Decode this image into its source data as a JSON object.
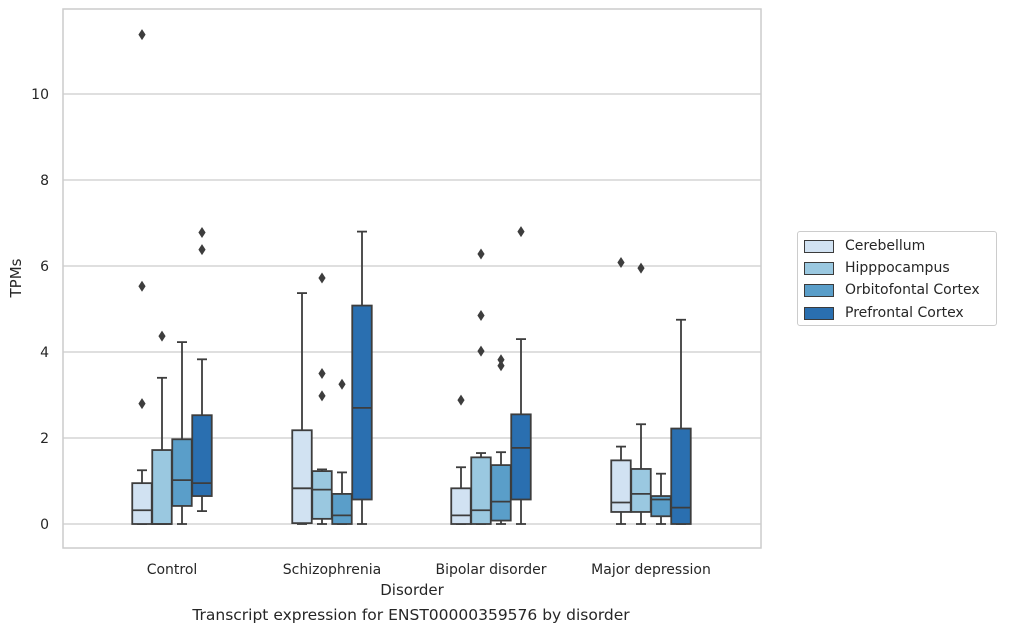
{
  "chart_data": {
    "type": "box",
    "xlabel": "Disorder",
    "ylabel": "TPMs",
    "ylim": [
      -0.55,
      12.0
    ],
    "yticks": [
      0,
      2,
      4,
      6,
      8,
      10
    ],
    "grid": "horizontal",
    "legend_position": "right",
    "categories": [
      "Control",
      "Schizophrenia",
      "Bipolar disorder",
      "Major depression"
    ],
    "series": [
      {
        "name": "Cerebellum",
        "color": "#d1e2f2",
        "boxes": [
          {
            "whislo": 0.0,
            "q1": 0.0,
            "med": 0.32,
            "q3": 0.95,
            "whishi": 1.25,
            "fliers": [
              2.8,
              5.53,
              11.38
            ]
          },
          {
            "whislo": 0.0,
            "q1": 0.02,
            "med": 0.83,
            "q3": 2.18,
            "whishi": 5.37,
            "fliers": []
          },
          {
            "whislo": 0.0,
            "q1": 0.0,
            "med": 0.2,
            "q3": 0.83,
            "whishi": 1.32,
            "fliers": [
              2.88
            ]
          },
          {
            "whislo": 0.0,
            "q1": 0.28,
            "med": 0.5,
            "q3": 1.48,
            "whishi": 1.8,
            "fliers": [
              6.08
            ]
          }
        ]
      },
      {
        "name": "Hipppocampus",
        "color": "#9ac8e0",
        "boxes": [
          {
            "whislo": 0.0,
            "q1": 0.0,
            "med": 0.0,
            "q3": 1.72,
            "whishi": 3.4,
            "fliers": [
              4.37
            ]
          },
          {
            "whislo": 0.0,
            "q1": 0.12,
            "med": 0.8,
            "q3": 1.23,
            "whishi": 1.27,
            "fliers": [
              2.98,
              3.5,
              5.72
            ]
          },
          {
            "whislo": 0.0,
            "q1": 0.0,
            "med": 0.32,
            "q3": 1.55,
            "whishi": 1.65,
            "fliers": [
              4.02,
              4.85,
              6.28
            ]
          },
          {
            "whislo": 0.0,
            "q1": 0.28,
            "med": 0.7,
            "q3": 1.28,
            "whishi": 2.32,
            "fliers": [
              5.95
            ]
          }
        ]
      },
      {
        "name": "Orbitofontal Cortex",
        "color": "#5a9ec9",
        "boxes": [
          {
            "whislo": 0.0,
            "q1": 0.42,
            "med": 1.02,
            "q3": 1.97,
            "whishi": 4.23,
            "fliers": []
          },
          {
            "whislo": 0.0,
            "q1": 0.0,
            "med": 0.2,
            "q3": 0.7,
            "whishi": 1.2,
            "fliers": [
              3.25
            ]
          },
          {
            "whislo": 0.0,
            "q1": 0.08,
            "med": 0.52,
            "q3": 1.37,
            "whishi": 1.67,
            "fliers": [
              3.68,
              3.82
            ]
          },
          {
            "whislo": 0.0,
            "q1": 0.18,
            "med": 0.57,
            "q3": 0.65,
            "whishi": 1.17,
            "fliers": []
          }
        ]
      },
      {
        "name": "Prefrontal Cortex",
        "color": "#2a6fb0",
        "boxes": [
          {
            "whislo": 0.3,
            "q1": 0.65,
            "med": 0.95,
            "q3": 2.53,
            "whishi": 3.83,
            "fliers": [
              6.38,
              6.78
            ]
          },
          {
            "whislo": 0.0,
            "q1": 0.57,
            "med": 2.7,
            "q3": 5.08,
            "whishi": 6.8,
            "fliers": []
          },
          {
            "whislo": 0.0,
            "q1": 0.57,
            "med": 1.77,
            "q3": 2.55,
            "whishi": 4.3,
            "fliers": [
              6.8
            ]
          },
          {
            "whislo": 0.0,
            "q1": 0.0,
            "med": 0.38,
            "q3": 2.22,
            "whishi": 4.75,
            "fliers": []
          }
        ]
      }
    ]
  },
  "caption": "Transcript expression for ENST00000359576 by disorder"
}
